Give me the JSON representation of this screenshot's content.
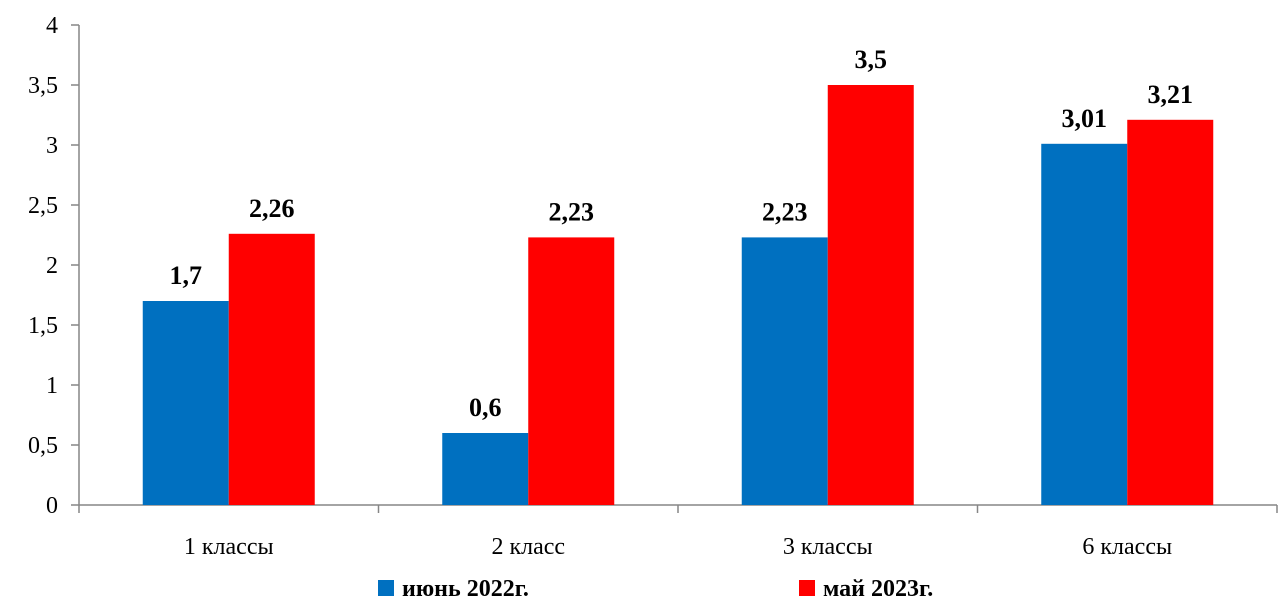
{
  "chart_data": {
    "type": "bar",
    "categories": [
      "1 классы",
      "2 класс",
      "3 классы",
      "6 классы"
    ],
    "series": [
      {
        "name": "июнь 2022г.",
        "values": [
          1.7,
          0.6,
          2.23,
          3.01
        ],
        "labels": [
          "1,7",
          "0,6",
          "2,23",
          "3,01"
        ],
        "color": "#0070C0"
      },
      {
        "name": "май 2023г.",
        "values": [
          2.26,
          2.23,
          3.5,
          3.21
        ],
        "labels": [
          "2,26",
          "2,23",
          "3,5",
          "3,21"
        ],
        "color": "#FF0000"
      }
    ],
    "yticks": [
      0,
      0.5,
      1,
      1.5,
      2,
      2.5,
      3,
      3.5,
      4
    ],
    "ytick_labels": [
      "0",
      "0,5",
      "1",
      "1,5",
      "2",
      "2,5",
      "3",
      "3,5",
      "4"
    ],
    "ylim": [
      0,
      4
    ],
    "grid": false,
    "legend_position": "bottom",
    "title": "",
    "xlabel": "",
    "ylabel": ""
  }
}
